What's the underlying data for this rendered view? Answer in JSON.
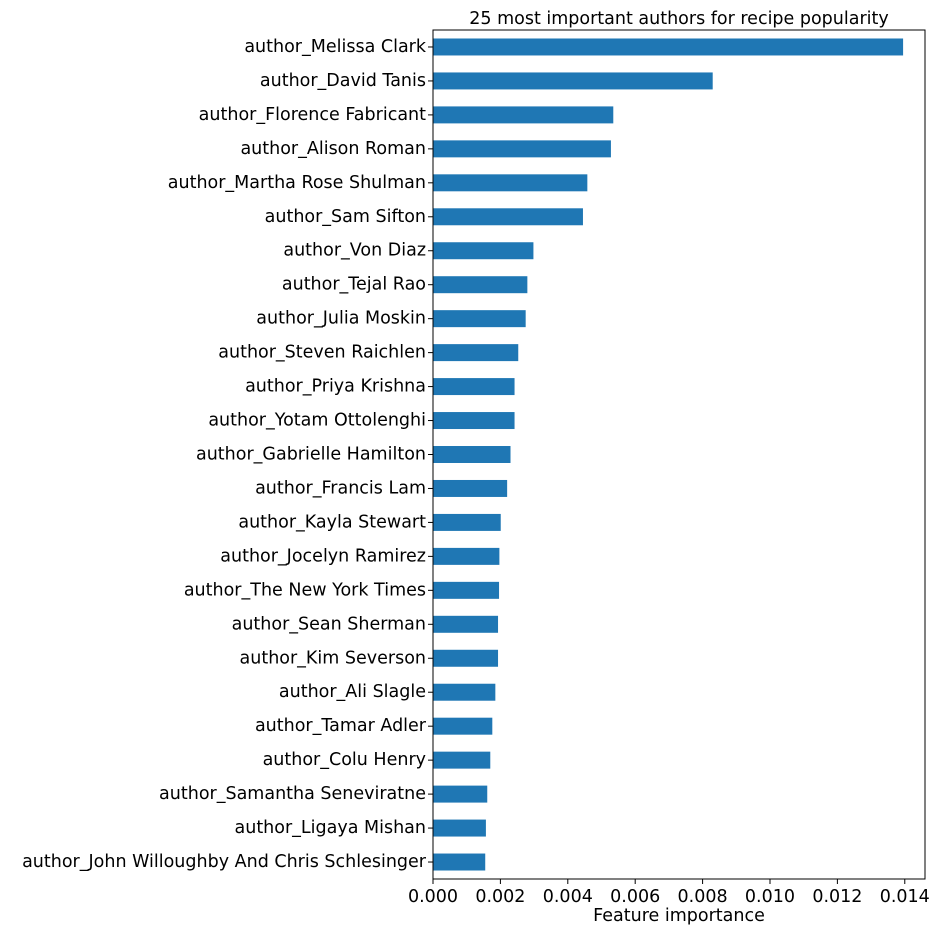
{
  "chart_data": {
    "type": "bar",
    "orientation": "horizontal",
    "title": "25 most important authors for recipe popularity",
    "xlabel": "Feature importance",
    "ylabel": "",
    "xlim": [
      0,
      0.0146
    ],
    "xticks": [
      0.0,
      0.002,
      0.004,
      0.006,
      0.008,
      0.01,
      0.012,
      0.014
    ],
    "xtick_labels": [
      "0.000",
      "0.002",
      "0.004",
      "0.006",
      "0.008",
      "0.010",
      "0.012",
      "0.014"
    ],
    "grid": false,
    "bar_color": "#1f77b4",
    "categories": [
      "author_Melissa Clark",
      "author_David Tanis",
      "author_Florence Fabricant",
      "author_Alison Roman",
      "author_Martha Rose Shulman",
      "author_Sam Sifton",
      "author_Von Diaz",
      "author_Tejal Rao",
      "author_Julia Moskin",
      "author_Steven Raichlen",
      "author_Priya Krishna",
      "author_Yotam Ottolenghi",
      "author_Gabrielle Hamilton",
      "author_Francis Lam",
      "author_Kayla Stewart",
      "author_Jocelyn Ramirez",
      "author_The New York Times",
      "author_Sean Sherman",
      "author_Kim Severson",
      "author_Ali Slagle",
      "author_Tamar Adler",
      "author_Colu Henry",
      "author_Samantha Seneviratne",
      "author_Ligaya Mishan",
      "author_John Willoughby And Chris Schlesinger"
    ],
    "values": [
      0.01395,
      0.0083,
      0.00535,
      0.00528,
      0.00458,
      0.00445,
      0.00298,
      0.0028,
      0.00275,
      0.00253,
      0.00242,
      0.00242,
      0.0023,
      0.0022,
      0.00201,
      0.00197,
      0.00196,
      0.00193,
      0.00193,
      0.00185,
      0.00176,
      0.0017,
      0.00161,
      0.00157,
      0.00155
    ]
  }
}
